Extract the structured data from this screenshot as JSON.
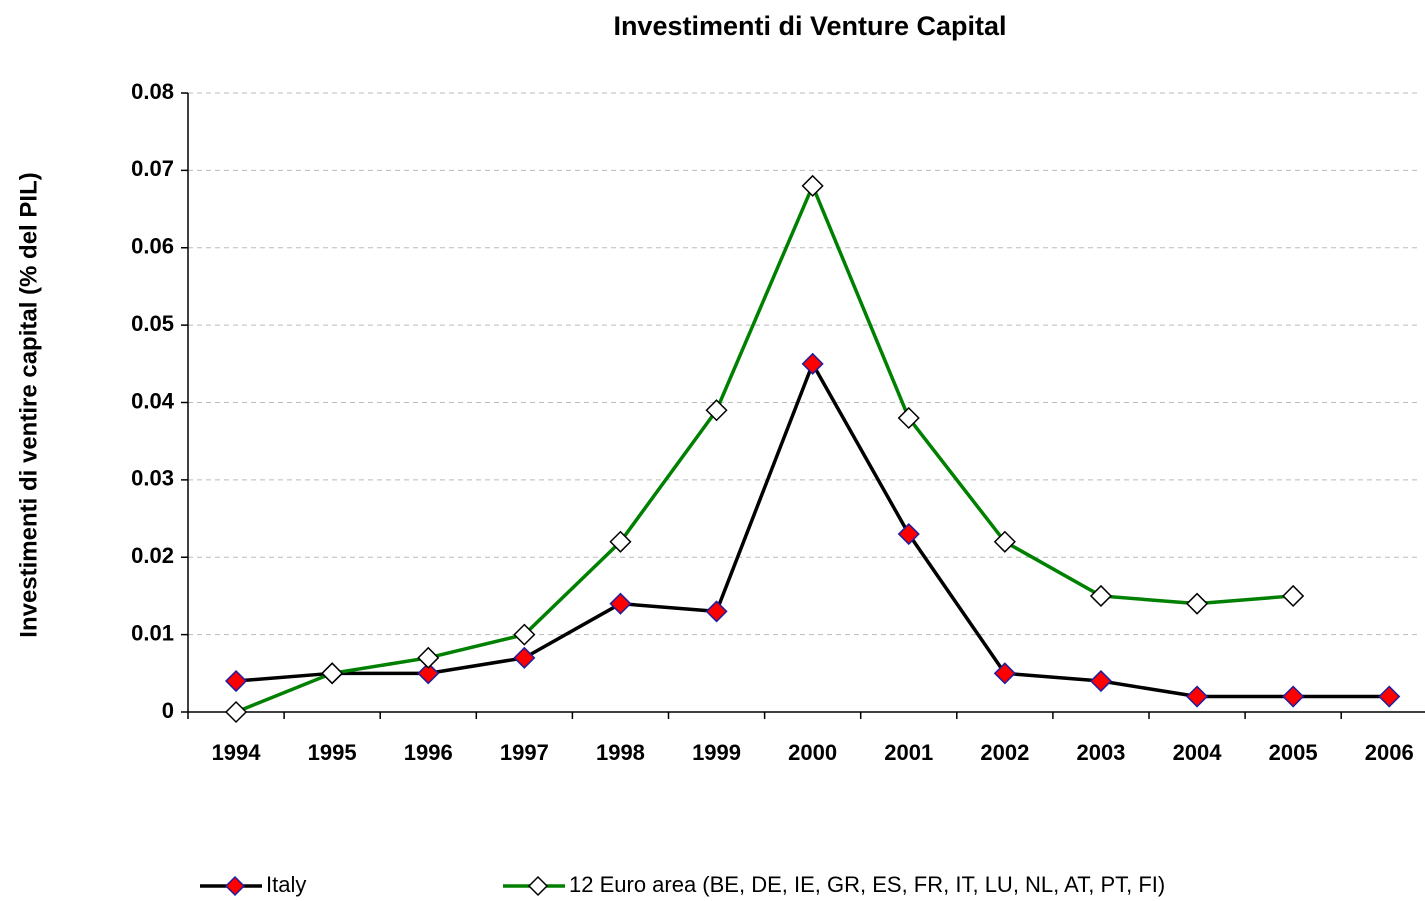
{
  "chart_data": {
    "type": "line",
    "title": "Investimenti di Venture Capital",
    "y_label": "Investimenti di ventire capital (% del PIL)",
    "categories": [
      "1994",
      "1995",
      "1996",
      "1997",
      "1998",
      "1999",
      "2000",
      "2001",
      "2002",
      "2003",
      "2004",
      "2005",
      "2006"
    ],
    "series": [
      {
        "name": "Italy",
        "color": "#000000",
        "marker_color": "#ff0000",
        "marker_edge": "#1f1f9f",
        "values": [
          0.004,
          0.005,
          0.005,
          0.007,
          0.014,
          0.013,
          0.045,
          0.023,
          0.005,
          0.004,
          0.002,
          0.002,
          0.002
        ]
      },
      {
        "name": "12 Euro area (BE, DE, IE, GR, ES, FR, IT, LU, NL, AT, PT, FI)",
        "color": "#008000",
        "marker_color": "#ffffff",
        "marker_edge": "#000000",
        "values": [
          0,
          0.005,
          0.007,
          0.01,
          0.022,
          0.039,
          0.068,
          0.038,
          0.022,
          0.015,
          0.014,
          0.015,
          null
        ]
      }
    ],
    "ylim": [
      0,
      0.08
    ],
    "yticks": [
      0,
      0.01,
      0.02,
      0.03,
      0.04,
      0.05,
      0.06,
      0.07,
      0.08
    ],
    "grid": true,
    "legend": "bottom"
  }
}
